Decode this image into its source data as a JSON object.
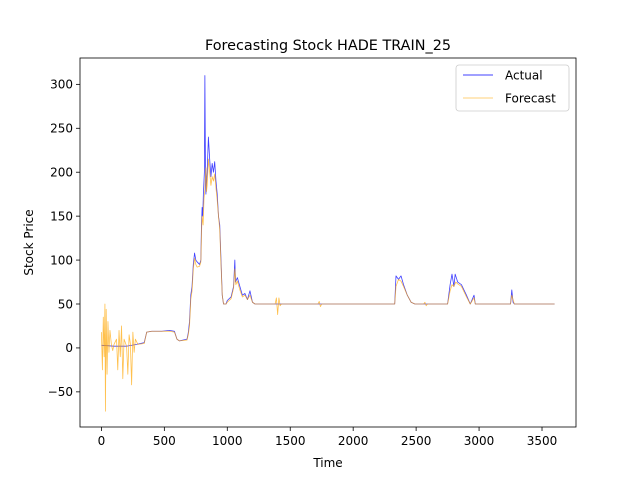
{
  "chart_data": {
    "type": "line",
    "title": "Forecasting Stock HADE TRAIN_25",
    "xlabel": "Time",
    "ylabel": "Stock Price",
    "xlim": [
      -170,
      3770
    ],
    "ylim": [
      -90,
      330
    ],
    "xticks": [
      0,
      500,
      1000,
      1500,
      2000,
      2500,
      3000,
      3500
    ],
    "yticks": [
      -50,
      0,
      50,
      100,
      150,
      200,
      250,
      300
    ],
    "xtick_labels": [
      "0",
      "500",
      "1000",
      "1500",
      "2000",
      "2500",
      "3000",
      "3500"
    ],
    "ytick_labels": [
      "−50",
      "0",
      "50",
      "100",
      "150",
      "200",
      "250",
      "300"
    ],
    "grid": false,
    "legend_position": "top-right",
    "series": [
      {
        "name": "Actual",
        "color": "#0000ff",
        "points": [
          [
            0,
            3
          ],
          [
            100,
            2
          ],
          [
            200,
            2
          ],
          [
            280,
            4
          ],
          [
            340,
            6
          ],
          [
            360,
            18
          ],
          [
            400,
            19
          ],
          [
            480,
            19
          ],
          [
            540,
            20
          ],
          [
            580,
            19
          ],
          [
            600,
            10
          ],
          [
            620,
            8
          ],
          [
            680,
            10
          ],
          [
            690,
            17
          ],
          [
            700,
            30
          ],
          [
            710,
            60
          ],
          [
            720,
            70
          ],
          [
            730,
            95
          ],
          [
            740,
            108
          ],
          [
            750,
            100
          ],
          [
            760,
            98
          ],
          [
            780,
            95
          ],
          [
            790,
            100
          ],
          [
            795,
            140
          ],
          [
            800,
            160
          ],
          [
            805,
            150
          ],
          [
            810,
            175
          ],
          [
            818,
            200
          ],
          [
            822,
            310
          ],
          [
            826,
            220
          ],
          [
            830,
            175
          ],
          [
            840,
            200
          ],
          [
            850,
            240
          ],
          [
            860,
            215
          ],
          [
            870,
            195
          ],
          [
            880,
            210
          ],
          [
            890,
            200
          ],
          [
            900,
            212
          ],
          [
            910,
            190
          ],
          [
            920,
            175
          ],
          [
            930,
            150
          ],
          [
            940,
            140
          ],
          [
            950,
            100
          ],
          [
            960,
            60
          ],
          [
            970,
            50
          ],
          [
            990,
            50
          ],
          [
            1000,
            54
          ],
          [
            1030,
            58
          ],
          [
            1050,
            70
          ],
          [
            1060,
            100
          ],
          [
            1065,
            75
          ],
          [
            1080,
            80
          ],
          [
            1100,
            70
          ],
          [
            1120,
            60
          ],
          [
            1140,
            62
          ],
          [
            1160,
            55
          ],
          [
            1180,
            65
          ],
          [
            1200,
            52
          ],
          [
            1220,
            50
          ],
          [
            1400,
            50
          ],
          [
            2330,
            50
          ],
          [
            2340,
            82
          ],
          [
            2360,
            78
          ],
          [
            2380,
            82
          ],
          [
            2400,
            72
          ],
          [
            2430,
            60
          ],
          [
            2460,
            52
          ],
          [
            2490,
            50
          ],
          [
            2750,
            50
          ],
          [
            2770,
            72
          ],
          [
            2785,
            84
          ],
          [
            2800,
            70
          ],
          [
            2810,
            84
          ],
          [
            2830,
            75
          ],
          [
            2860,
            72
          ],
          [
            2900,
            60
          ],
          [
            2930,
            50
          ],
          [
            2960,
            60
          ],
          [
            2970,
            50
          ],
          [
            3250,
            50
          ],
          [
            3260,
            66
          ],
          [
            3270,
            52
          ],
          [
            3280,
            50
          ],
          [
            3600,
            50
          ]
        ]
      },
      {
        "name": "Forecast",
        "color": "#ffa500",
        "points": [
          [
            0,
            18
          ],
          [
            8,
            -25
          ],
          [
            15,
            35
          ],
          [
            22,
            -10
          ],
          [
            28,
            50
          ],
          [
            32,
            -72
          ],
          [
            38,
            44
          ],
          [
            45,
            -30
          ],
          [
            52,
            30
          ],
          [
            60,
            -5
          ],
          [
            68,
            20
          ],
          [
            80,
            3
          ],
          [
            90,
            -3
          ],
          [
            100,
            4
          ],
          [
            120,
            10
          ],
          [
            130,
            -25
          ],
          [
            140,
            20
          ],
          [
            150,
            -10
          ],
          [
            160,
            25
          ],
          [
            170,
            -35
          ],
          [
            180,
            10
          ],
          [
            200,
            2
          ],
          [
            210,
            -30
          ],
          [
            220,
            15
          ],
          [
            230,
            5
          ],
          [
            240,
            -42
          ],
          [
            250,
            18
          ],
          [
            260,
            -5
          ],
          [
            270,
            10
          ],
          [
            290,
            4
          ],
          [
            340,
            5
          ],
          [
            360,
            18
          ],
          [
            400,
            19
          ],
          [
            480,
            19
          ],
          [
            540,
            19
          ],
          [
            580,
            18
          ],
          [
            600,
            10
          ],
          [
            620,
            8
          ],
          [
            680,
            9
          ],
          [
            690,
            15
          ],
          [
            700,
            25
          ],
          [
            710,
            55
          ],
          [
            720,
            65
          ],
          [
            730,
            90
          ],
          [
            740,
            102
          ],
          [
            750,
            95
          ],
          [
            760,
            92
          ],
          [
            780,
            93
          ],
          [
            790,
            98
          ],
          [
            795,
            130
          ],
          [
            800,
            150
          ],
          [
            808,
            140
          ],
          [
            815,
            170
          ],
          [
            822,
            180
          ],
          [
            830,
            205
          ],
          [
            835,
            178
          ],
          [
            840,
            185
          ],
          [
            850,
            215
          ],
          [
            860,
            200
          ],
          [
            870,
            185
          ],
          [
            880,
            195
          ],
          [
            890,
            190
          ],
          [
            900,
            198
          ],
          [
            910,
            182
          ],
          [
            920,
            168
          ],
          [
            930,
            150
          ],
          [
            940,
            135
          ],
          [
            950,
            95
          ],
          [
            960,
            60
          ],
          [
            970,
            50
          ],
          [
            990,
            50
          ],
          [
            1000,
            52
          ],
          [
            1030,
            56
          ],
          [
            1050,
            68
          ],
          [
            1060,
            90
          ],
          [
            1068,
            72
          ],
          [
            1080,
            76
          ],
          [
            1100,
            66
          ],
          [
            1120,
            58
          ],
          [
            1140,
            60
          ],
          [
            1160,
            55
          ],
          [
            1180,
            60
          ],
          [
            1200,
            52
          ],
          [
            1220,
            50
          ],
          [
            1380,
            50
          ],
          [
            1390,
            57
          ],
          [
            1400,
            38
          ],
          [
            1410,
            57
          ],
          [
            1420,
            48
          ],
          [
            1430,
            50
          ],
          [
            1720,
            50
          ],
          [
            1730,
            53
          ],
          [
            1740,
            47
          ],
          [
            1750,
            50
          ],
          [
            2330,
            50
          ],
          [
            2340,
            70
          ],
          [
            2360,
            78
          ],
          [
            2380,
            76
          ],
          [
            2400,
            70
          ],
          [
            2430,
            60
          ],
          [
            2460,
            52
          ],
          [
            2490,
            50
          ],
          [
            2560,
            50
          ],
          [
            2570,
            52
          ],
          [
            2580,
            48
          ],
          [
            2590,
            50
          ],
          [
            2750,
            50
          ],
          [
            2770,
            65
          ],
          [
            2785,
            72
          ],
          [
            2800,
            70
          ],
          [
            2815,
            75
          ],
          [
            2830,
            73
          ],
          [
            2860,
            70
          ],
          [
            2900,
            58
          ],
          [
            2930,
            50
          ],
          [
            2960,
            57
          ],
          [
            2970,
            50
          ],
          [
            3250,
            50
          ],
          [
            3260,
            60
          ],
          [
            3270,
            55
          ],
          [
            3280,
            50
          ],
          [
            3600,
            50
          ]
        ]
      }
    ]
  }
}
